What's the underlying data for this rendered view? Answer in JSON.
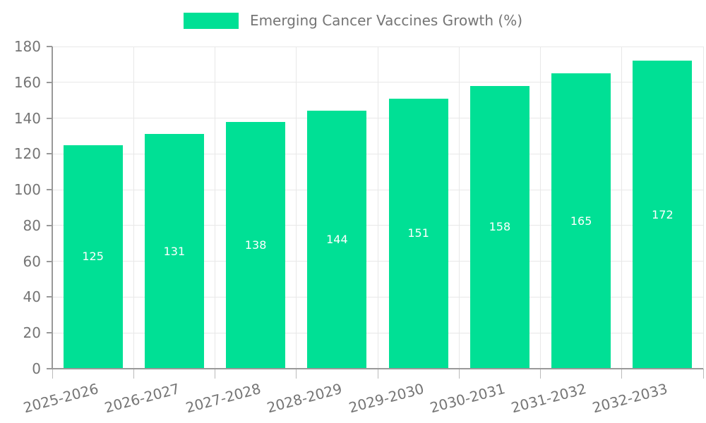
{
  "legend": {
    "position": "top-center"
  },
  "chart_data": {
    "type": "bar",
    "title": "Emerging Cancer Vaccines Growth (%)",
    "series_name": "Emerging Cancer Vaccines Growth (%)",
    "categories": [
      "2025-2026",
      "2026-2027",
      "2027-2028",
      "2028-2029",
      "2029-2030",
      "2030-2031",
      "2031-2032",
      "2032-2033"
    ],
    "values": [
      125,
      131,
      138,
      144,
      151,
      158,
      165,
      172
    ],
    "xlabel": "",
    "ylabel": "",
    "ylim": [
      0,
      180
    ],
    "ytick_step": 20,
    "yticks": [
      0,
      20,
      40,
      60,
      80,
      100,
      120,
      140,
      160,
      180
    ],
    "grid": true,
    "legend_position": "top-center",
    "value_labels": "inside-center",
    "colors": {
      "bar": "#00E095",
      "axis": "#999999",
      "grid": "#e8e8e8",
      "tick": "#bbbbbb",
      "tick_label": "#757575",
      "value_label": "#ffffff",
      "background": "#ffffff"
    }
  }
}
